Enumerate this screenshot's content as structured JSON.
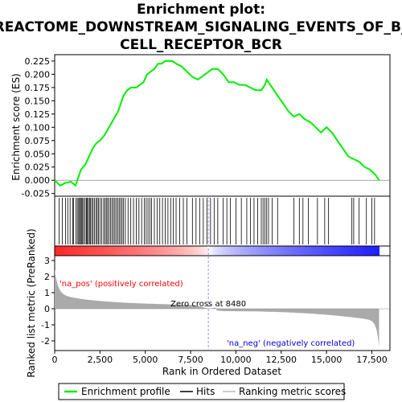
{
  "chart_data": {
    "type": "line",
    "title_lines": [
      "Enrichment plot:",
      "REACTOME_DOWNSTREAM_SIGNALING_EVENTS_OF_B_",
      "CELL_RECEPTOR_BCR"
    ],
    "es_panel": {
      "ylabel": "Enrichment score (ES)",
      "yticks": [
        "0.225",
        "0.200",
        "0.175",
        "0.150",
        "0.125",
        "0.100",
        "0.075",
        "0.050",
        "0.025",
        "0.000",
        "-0.025"
      ],
      "ylim": [
        -0.03,
        0.237
      ],
      "series": [
        {
          "name": "Enrichment profile",
          "color": "#00ee00",
          "x": [
            0,
            300,
            600,
            900,
            1150,
            1300,
            1450,
            1700,
            1900,
            2100,
            2300,
            2500,
            2750,
            3000,
            3250,
            3500,
            3650,
            3800,
            4000,
            4200,
            4500,
            4700,
            4900,
            5100,
            5300,
            5500,
            5700,
            5900,
            6100,
            6300,
            6500,
            6700,
            7000,
            7300,
            7600,
            7900,
            8100,
            8300,
            8500,
            8700,
            9000,
            9300,
            9600,
            9900,
            10200,
            10500,
            10800,
            11100,
            11400,
            11600,
            11700,
            12000,
            12300,
            12600,
            12900,
            13200,
            13500,
            13800,
            14100,
            14400,
            14700,
            15000,
            15300,
            15600,
            15900,
            16200,
            16500,
            16800,
            17100,
            17400,
            17700,
            17900
          ],
          "y": [
            0.0,
            -0.01,
            -0.005,
            -0.003,
            -0.01,
            0.005,
            0.02,
            0.03,
            0.045,
            0.06,
            0.07,
            0.075,
            0.085,
            0.1,
            0.115,
            0.13,
            0.145,
            0.16,
            0.17,
            0.175,
            0.175,
            0.18,
            0.185,
            0.2,
            0.205,
            0.21,
            0.22,
            0.22,
            0.225,
            0.225,
            0.225,
            0.22,
            0.215,
            0.205,
            0.195,
            0.19,
            0.195,
            0.2,
            0.205,
            0.21,
            0.21,
            0.2,
            0.185,
            0.185,
            0.18,
            0.18,
            0.175,
            0.17,
            0.17,
            0.18,
            0.19,
            0.175,
            0.16,
            0.145,
            0.13,
            0.12,
            0.125,
            0.115,
            0.11,
            0.1,
            0.09,
            0.1,
            0.09,
            0.075,
            0.06,
            0.045,
            0.04,
            0.035,
            0.025,
            0.02,
            0.01,
            0.0
          ]
        }
      ]
    },
    "hits": [
      250,
      420,
      600,
      720,
      850,
      1000,
      1050,
      1180,
      1250,
      1320,
      1380,
      1420,
      1480,
      1540,
      1600,
      1680,
      1750,
      1800,
      1860,
      1920,
      1980,
      2050,
      2120,
      2200,
      2280,
      2350,
      2420,
      2500,
      2600,
      2700,
      2780,
      2850,
      2920,
      3000,
      3080,
      3160,
      3240,
      3320,
      3400,
      3480,
      3560,
      3640,
      3720,
      3800,
      3900,
      4050,
      4200,
      4350,
      4500,
      4650,
      4800,
      4950,
      5050,
      5150,
      5250,
      5350,
      5500,
      5650,
      5800,
      5950,
      6100,
      6250,
      6400,
      6550,
      6700,
      6900,
      7100,
      7300,
      7600,
      7800,
      8000,
      8200,
      8400,
      8600,
      8800,
      9000,
      9300,
      9500,
      9700,
      10000,
      10300,
      10600,
      10800,
      11000,
      11200,
      11400,
      11500,
      11600,
      11700,
      11800,
      12000,
      12300,
      13200,
      13500,
      13700,
      14000,
      14500,
      14900,
      15100,
      16400,
      16500,
      16800,
      17200,
      17500,
      17650
    ],
    "rank_panel": {
      "ylabel": "Ranked list metric (PreRanked)",
      "yticks": [
        "3",
        "2",
        "1",
        "0",
        "-1",
        "-2"
      ],
      "ylim": [
        -2.6,
        3.3
      ],
      "zero_cross_label": "Zero cross at 8480",
      "zero_cross": 8480,
      "pos_label": "'na_pos' (positively correlated)",
      "neg_label": "'na_neg' (negatively correlated)"
    },
    "xlabel": "Rank in Ordered Dataset",
    "xticks": [
      "0",
      "2,500",
      "5,000",
      "7,500",
      "10,000",
      "12,500",
      "15,000",
      "17,500"
    ],
    "xtick_values": [
      0,
      2500,
      5000,
      7500,
      10000,
      12500,
      15000,
      17500
    ],
    "xlim": [
      0,
      18500
    ],
    "n": 17900,
    "legend": [
      {
        "label": "Enrichment profile",
        "color": "#00ee00",
        "icon": "green-line"
      },
      {
        "label": "Hits",
        "color": "#000000",
        "icon": "black-line"
      },
      {
        "label": "Ranking metric scores",
        "color": "#bbbbbb",
        "icon": "gray-line"
      }
    ],
    "colors": {
      "pos": "#ff2020",
      "neg": "#2020ff",
      "zero_cross": "#9999cc",
      "bg_panel": "#ffffff",
      "bar": "#aaaaaa"
    }
  }
}
